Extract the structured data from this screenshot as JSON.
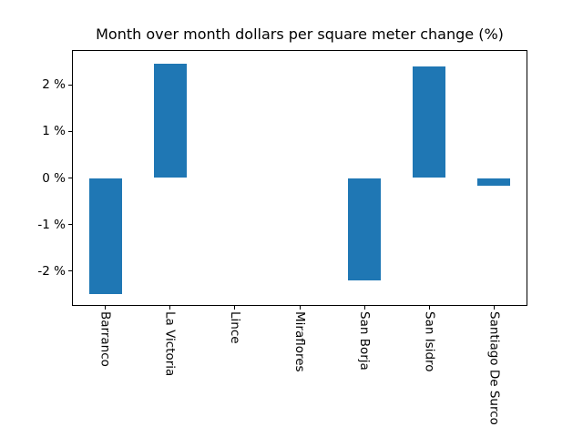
{
  "figure": {
    "background": "#ffffff"
  },
  "chart_data": {
    "type": "bar",
    "title": "Month over month dollars per square meter change (%)",
    "categories": [
      "Barranco",
      "La Victoria",
      "Lince",
      "Miraflores",
      "San Borja",
      "San Isidro",
      "Santiago De Surco"
    ],
    "values": [
      -2.49,
      2.45,
      0,
      0,
      -2.2,
      2.4,
      -0.16
    ],
    "bar_color": "#1f77b4",
    "axis_color": "#000000",
    "xlabel": "",
    "ylabel": "",
    "ylim": [
      -2.73,
      2.73
    ],
    "yticks": [
      {
        "value": 2,
        "label": "2 %"
      },
      {
        "value": 1,
        "label": "1 %"
      },
      {
        "value": 0,
        "label": "0 %"
      },
      {
        "value": -1,
        "label": "-1 %"
      },
      {
        "value": -2,
        "label": "-2 %"
      }
    ],
    "grid": false,
    "legend": "none",
    "x_tick_rotation_deg": 90
  }
}
